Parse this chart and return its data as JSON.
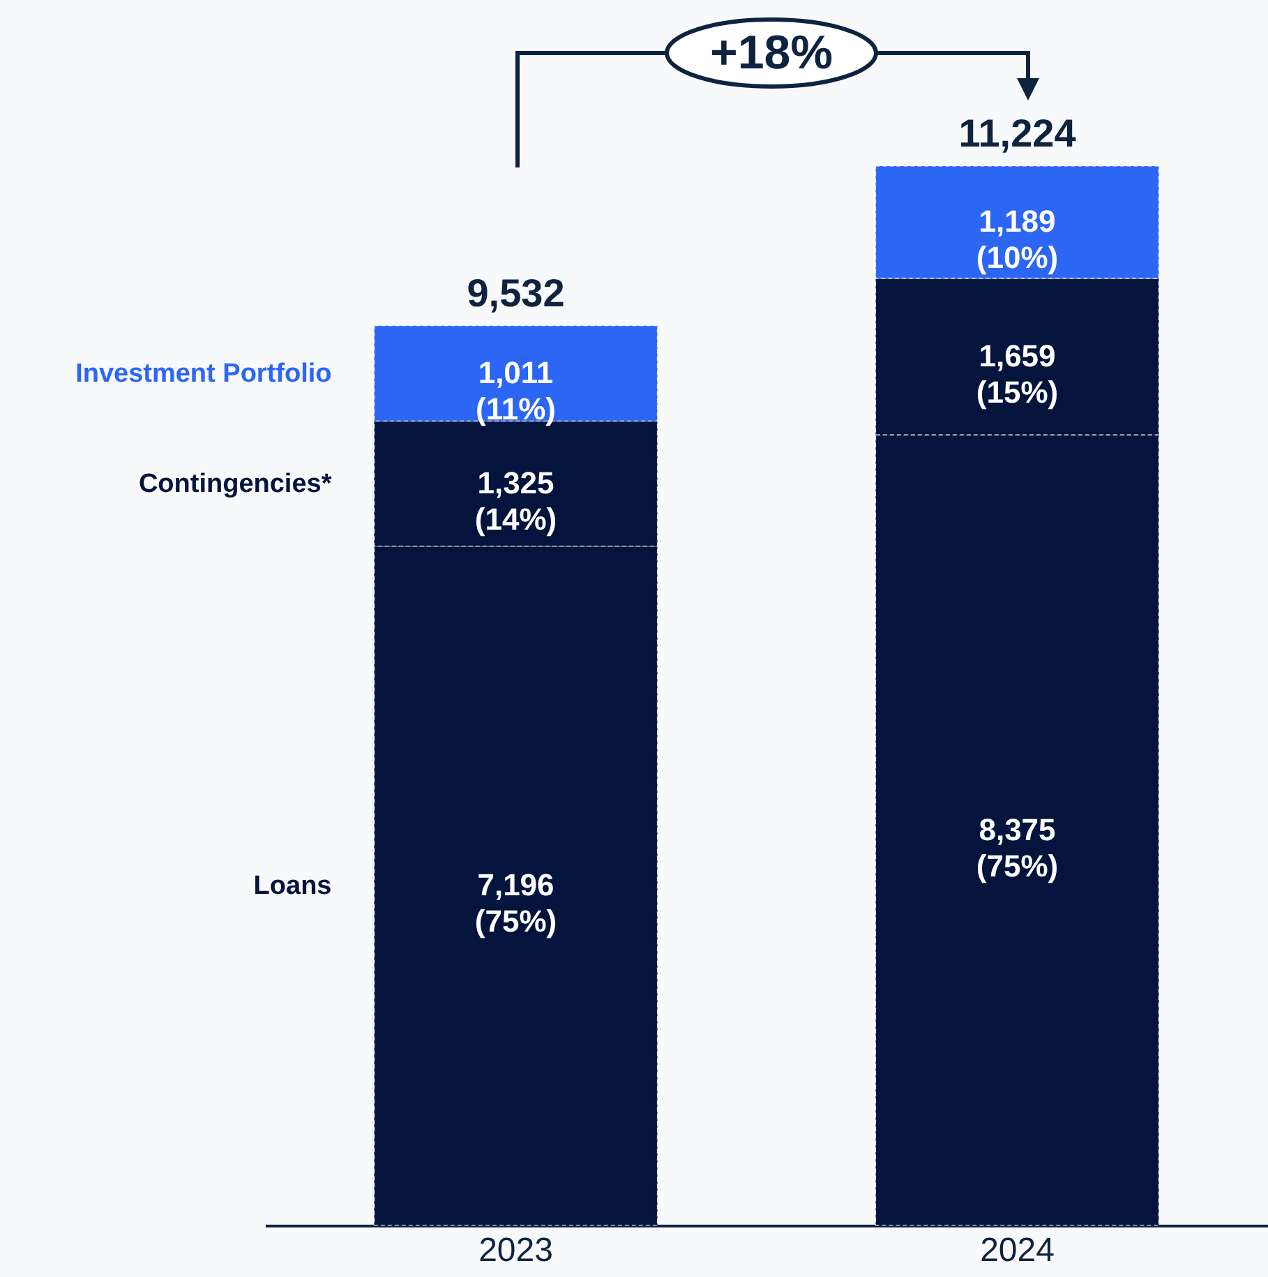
{
  "chart_data": {
    "type": "bar",
    "stacked": true,
    "categories": [
      "2023",
      "2024"
    ],
    "series": [
      {
        "name": "Loans",
        "color": "#04143c",
        "values": [
          7196,
          8375
        ],
        "value_labels": [
          "7,196\n(75%)",
          "8,375\n(75%)"
        ]
      },
      {
        "name": "Contingencies*",
        "color": "#04143c",
        "values": [
          1325,
          1659
        ],
        "value_labels": [
          "1,325\n(14%)",
          "1,659\n(15%)"
        ]
      },
      {
        "name": "Investment Portfolio",
        "color": "#2c66f5",
        "values": [
          1011,
          1189
        ],
        "value_labels": [
          "1,011\n(11%)",
          "1,189\n(10%)"
        ]
      }
    ],
    "totals": [
      "9,532",
      "11,224"
    ],
    "annotations": [
      "+18%"
    ]
  }
}
